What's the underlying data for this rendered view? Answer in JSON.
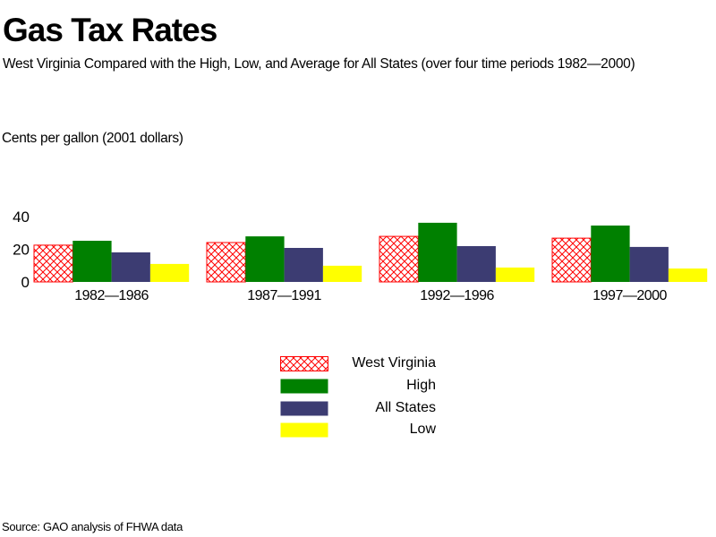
{
  "title": "Gas Tax Rates",
  "subtitle": "West Virginia Compared with the High, Low, and Average for All States (over four time periods 1982—2000)",
  "source": "Source: GAO analysis of FHWA data",
  "colors": {
    "west_virginia": "#ff0000",
    "high": "#008000",
    "all_states": "#3c3c72",
    "low": "#ffff00"
  },
  "chart_data": {
    "type": "bar",
    "title": "Gas Tax Rates",
    "xlabel": "",
    "ylabel": "Cents per gallon (2001 dollars)",
    "ylim": [
      0,
      40
    ],
    "yticks": [
      "0",
      "20",
      "40"
    ],
    "ytick_values": [
      0,
      20,
      40
    ],
    "grid": false,
    "legend_position": "bottom-center",
    "categories": [
      "1982—1986",
      "1987—1991",
      "1992—1996",
      "1997—2000"
    ],
    "series": [
      {
        "name": "West Virginia",
        "key": "west_virginia",
        "pattern": "crosshatch",
        "values": [
          22.5,
          24.1,
          27.9,
          26.8
        ]
      },
      {
        "name": "High",
        "key": "high",
        "values": [
          25.2,
          27.9,
          36.2,
          34.5
        ]
      },
      {
        "name": "All States",
        "key": "all_states",
        "values": [
          18.1,
          20.8,
          21.9,
          21.4
        ]
      },
      {
        "name": "Low",
        "key": "low",
        "values": [
          11.0,
          9.9,
          8.8,
          8.2
        ]
      }
    ]
  }
}
